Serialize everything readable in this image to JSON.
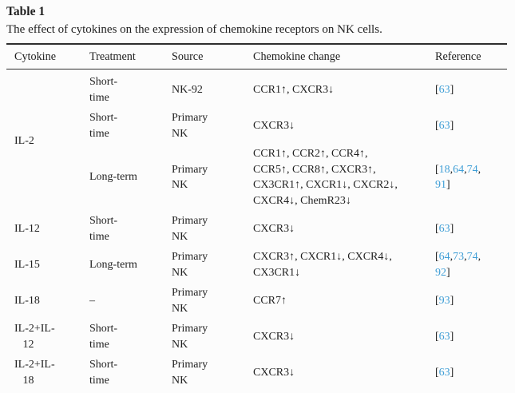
{
  "colors": {
    "background": "#fcfcfc",
    "text": "#1f1f1f",
    "rule": "#2e2e2e",
    "reference_link_blue": "#3f9ed6"
  },
  "table": {
    "label": "Table 1",
    "caption": "The effect of cytokines on the expression of chemokine receptors on NK cells.",
    "columns": [
      "Cytokine",
      "Treatment",
      "Source",
      "Chemokine change",
      "Reference"
    ],
    "groups": [
      {
        "cytokine": "IL-2",
        "rows": [
          {
            "treatment": "Short-\ntime",
            "source": "NK-92",
            "change": "CCR1↑, CXCR3↓",
            "refs": [
              "63"
            ]
          },
          {
            "treatment": "Short-\ntime",
            "source": "Primary\nNK",
            "change": "CXCR3↓",
            "refs": [
              "63"
            ]
          },
          {
            "treatment": "Long-term",
            "source": "Primary\nNK",
            "change": "CCR1↑, CCR2↑, CCR4↑,\nCCR5↑, CCR8↑, CXCR3↑,\nCX3CR1↑, CXCR1↓, CXCR2↓,\nCXCR4↓, ChemR23↓",
            "refs": [
              "18",
              "64",
              "74",
              "91"
            ]
          }
        ]
      },
      {
        "cytokine": "IL-12",
        "rows": [
          {
            "treatment": "Short-\ntime",
            "source": "Primary\nNK",
            "change": "CXCR3↓",
            "refs": [
              "63"
            ]
          }
        ]
      },
      {
        "cytokine": "IL-15",
        "rows": [
          {
            "treatment": "Long-term",
            "source": "Primary\nNK",
            "change": "CXCR3↑, CXCR1↓, CXCR4↓,\nCX3CR1↓",
            "refs": [
              "64",
              "73",
              "74",
              "92"
            ]
          }
        ]
      },
      {
        "cytokine": "IL-18",
        "rows": [
          {
            "treatment": "–",
            "source": "Primary\nNK",
            "change": "CCR7↑",
            "refs": [
              "93"
            ]
          }
        ]
      },
      {
        "cytokine": "IL-2+IL-\n   12",
        "rows": [
          {
            "treatment": "Short-\ntime",
            "source": "Primary\nNK",
            "change": "CXCR3↓",
            "refs": [
              "63"
            ]
          }
        ]
      },
      {
        "cytokine": "IL-2+IL-\n   18",
        "rows": [
          {
            "treatment": "Short-\ntime",
            "source": "Primary\nNK",
            "change": "CXCR3↓",
            "refs": [
              "63"
            ]
          }
        ]
      }
    ]
  }
}
